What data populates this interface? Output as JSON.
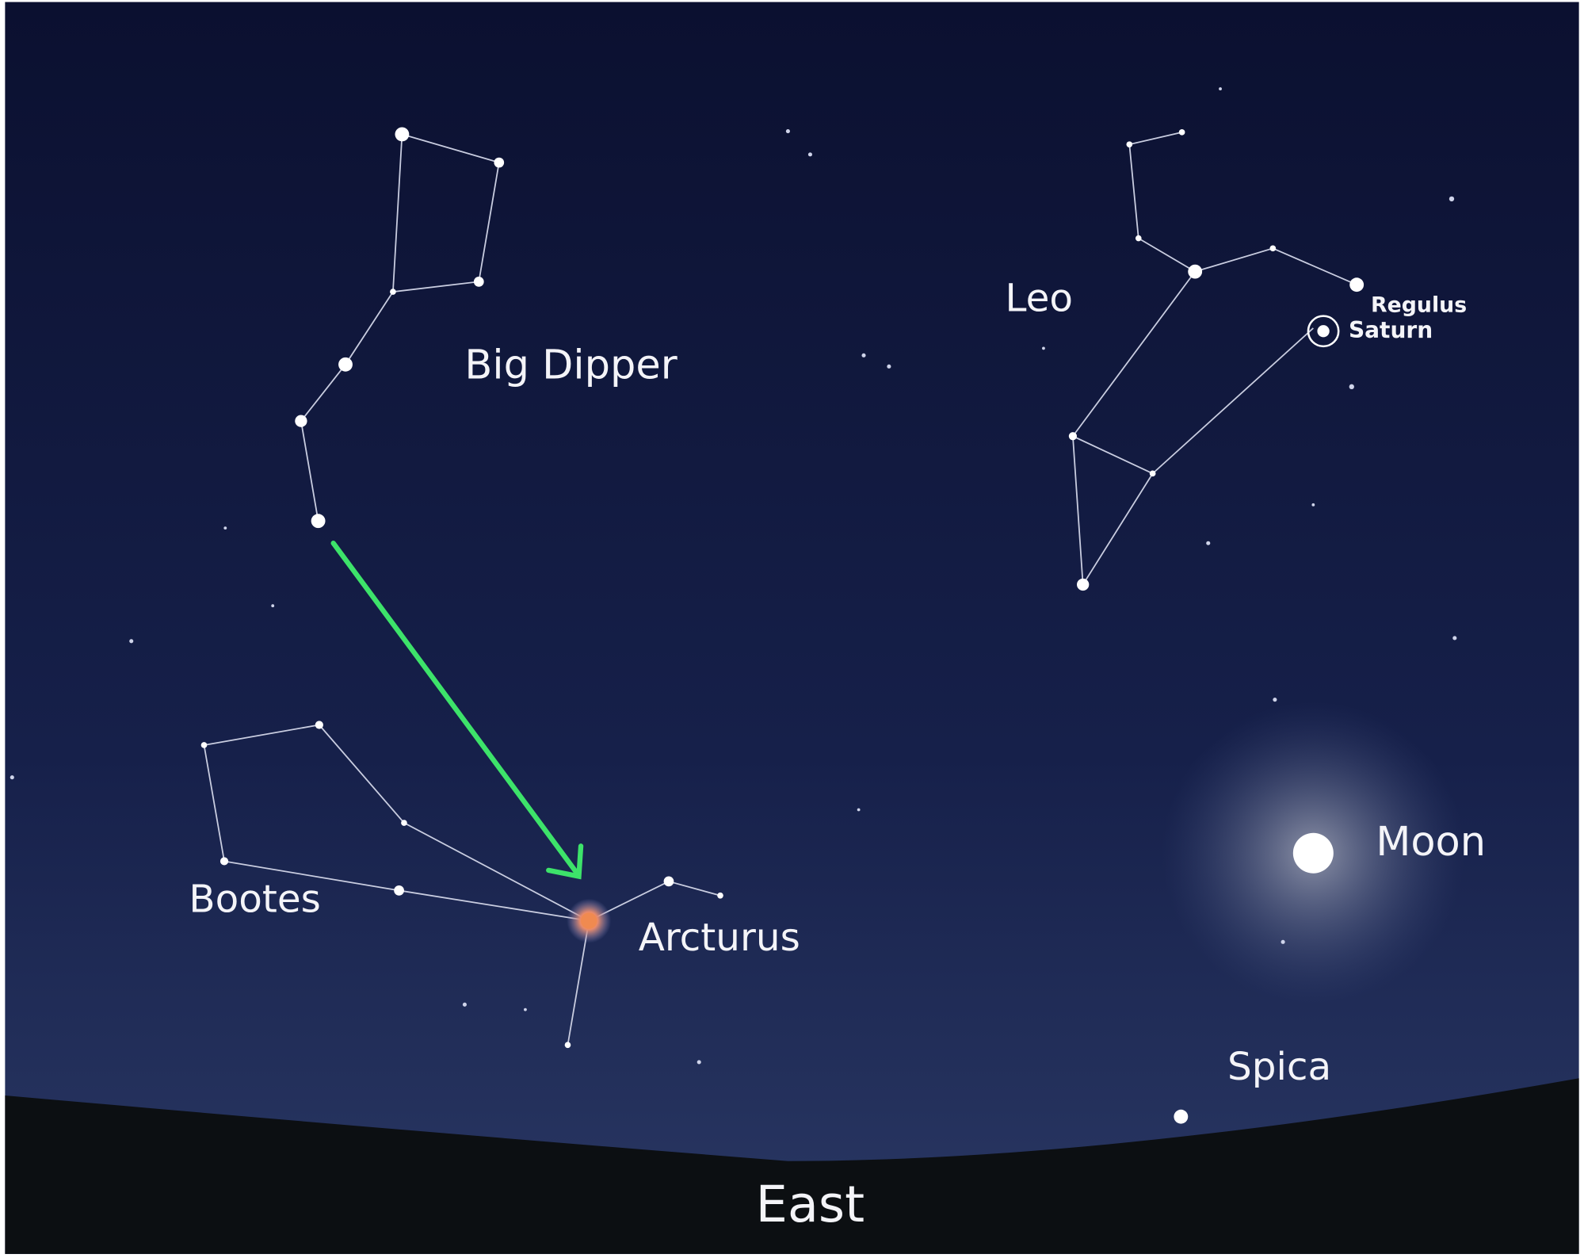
{
  "labels": {
    "big_dipper": "Big Dipper",
    "leo": "Leo",
    "regulus": "Regulus",
    "saturn": "Saturn",
    "moon": "Moon",
    "bootes": "Bootes",
    "arcturus": "Arcturus",
    "spica": "Spica",
    "east": "East"
  }
}
